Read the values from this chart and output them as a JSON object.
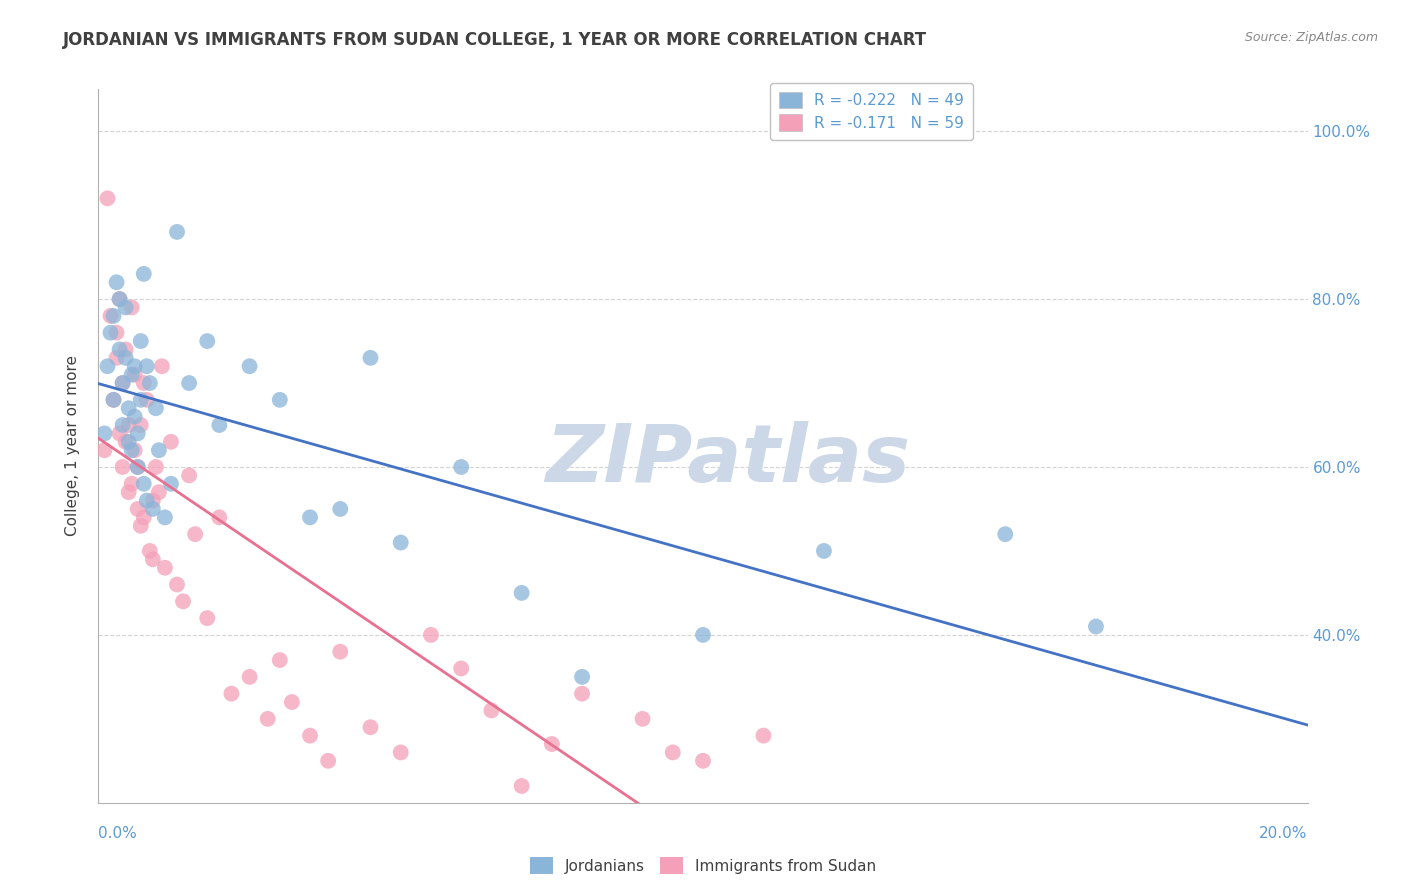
{
  "title": "JORDANIAN VS IMMIGRANTS FROM SUDAN COLLEGE, 1 YEAR OR MORE CORRELATION CHART",
  "source": "Source: ZipAtlas.com",
  "ylabel": "College, 1 year or more",
  "ytick_positions": [
    40,
    60,
    80,
    100
  ],
  "ytick_labels": [
    "40.0%",
    "60.0%",
    "80.0%",
    "100.0%"
  ],
  "xtick_labels": [
    "0.0%",
    "20.0%"
  ],
  "xlim": [
    0.0,
    20.0
  ],
  "ylim": [
    20.0,
    105.0
  ],
  "watermark": "ZIPatlas",
  "r_blue": "R = -0.222",
  "n_blue": "N = 49",
  "r_pink": "R = -0.171",
  "n_pink": "N = 59",
  "jordanians_x": [
    0.1,
    0.15,
    0.2,
    0.25,
    0.25,
    0.3,
    0.35,
    0.35,
    0.4,
    0.4,
    0.45,
    0.45,
    0.5,
    0.5,
    0.55,
    0.55,
    0.6,
    0.6,
    0.65,
    0.65,
    0.7,
    0.7,
    0.75,
    0.75,
    0.8,
    0.8,
    0.85,
    0.9,
    0.95,
    1.0,
    1.1,
    1.2,
    1.3,
    1.5,
    1.8,
    2.0,
    2.5,
    3.0,
    3.5,
    4.0,
    4.5,
    5.0,
    6.0,
    7.0,
    8.0,
    10.0,
    12.0,
    15.0,
    16.5
  ],
  "jordanians_y": [
    64,
    72,
    76,
    68,
    78,
    82,
    74,
    80,
    65,
    70,
    73,
    79,
    63,
    67,
    71,
    62,
    66,
    72,
    60,
    64,
    68,
    75,
    83,
    58,
    72,
    56,
    70,
    55,
    67,
    62,
    54,
    58,
    88,
    70,
    75,
    65,
    72,
    68,
    54,
    55,
    73,
    51,
    60,
    45,
    35,
    40,
    50,
    52,
    41
  ],
  "sudan_x": [
    0.1,
    0.15,
    0.2,
    0.25,
    0.3,
    0.3,
    0.35,
    0.35,
    0.4,
    0.4,
    0.45,
    0.45,
    0.5,
    0.5,
    0.55,
    0.55,
    0.6,
    0.6,
    0.65,
    0.65,
    0.7,
    0.7,
    0.75,
    0.75,
    0.8,
    0.85,
    0.9,
    0.9,
    0.95,
    1.0,
    1.05,
    1.1,
    1.2,
    1.3,
    1.4,
    1.5,
    1.6,
    1.8,
    2.0,
    2.2,
    2.5,
    2.8,
    3.0,
    3.2,
    3.5,
    3.8,
    4.0,
    4.5,
    5.0,
    5.5,
    6.0,
    6.5,
    7.0,
    7.5,
    8.0,
    9.0,
    9.5,
    10.0,
    11.0
  ],
  "sudan_y": [
    62,
    92,
    78,
    68,
    73,
    76,
    80,
    64,
    70,
    60,
    63,
    74,
    57,
    65,
    79,
    58,
    62,
    71,
    55,
    60,
    53,
    65,
    70,
    54,
    68,
    50,
    56,
    49,
    60,
    57,
    72,
    48,
    63,
    46,
    44,
    59,
    52,
    42,
    54,
    33,
    35,
    30,
    37,
    32,
    28,
    25,
    38,
    29,
    26,
    40,
    36,
    31,
    22,
    27,
    33,
    30,
    26,
    25,
    28
  ],
  "blue_color": "#8ab4d8",
  "pink_color": "#f4a0b8",
  "blue_line_color": "#4472c4",
  "pink_line_color": "#e87090",
  "title_color": "#404040",
  "axis_label_color": "#5b9bd5",
  "watermark_color": "#ccd8e8",
  "grid_color": "#d0d0d0",
  "spine_color": "#b0b0b0"
}
